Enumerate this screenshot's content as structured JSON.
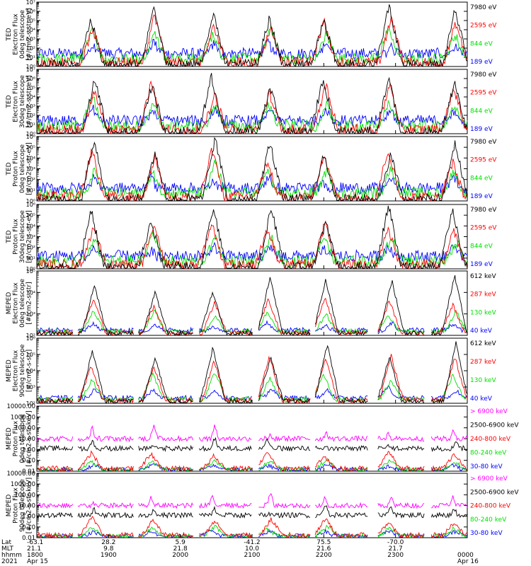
{
  "chart_data": [
    {
      "type": "line",
      "title": "",
      "ylabel": [
        "TED",
        "Electron Flux",
        "0deg telescope",
        "[#/cm2-s-str-eV]"
      ],
      "scale": "log",
      "ylim": [
        1,
        10000000
      ],
      "yticks": [
        "10⁰",
        "10¹",
        "10²",
        "10³",
        "10⁴",
        "10⁵",
        "10⁶",
        "10⁷"
      ],
      "series": [
        {
          "name": "7980 eV",
          "color": "#000000"
        },
        {
          "name": "2595 eV",
          "color": "#ff0000"
        },
        {
          "name": "844 eV",
          "color": "#00e000"
        },
        {
          "name": "189 eV",
          "color": "#0000ff"
        }
      ]
    },
    {
      "type": "line",
      "title": "",
      "ylabel": [
        "TED",
        "Electron Flux",
        "30deg telescope",
        "[#/cm2-s-str-eV]"
      ],
      "scale": "log",
      "ylim": [
        1,
        10000000
      ],
      "yticks": [
        "10⁰",
        "10¹",
        "10²",
        "10³",
        "10⁴",
        "10⁵",
        "10⁶",
        "10⁷"
      ],
      "series": [
        {
          "name": "7980 eV",
          "color": "#000000"
        },
        {
          "name": "2595 eV",
          "color": "#ff0000"
        },
        {
          "name": "844 eV",
          "color": "#00e000"
        },
        {
          "name": "189 eV",
          "color": "#0000ff"
        }
      ]
    },
    {
      "type": "line",
      "title": "",
      "ylabel": [
        "TED",
        "Proton Flux",
        "0deg telescope",
        "[#/cm2-s-str-eV]"
      ],
      "scale": "log",
      "ylim": [
        1,
        1000000
      ],
      "yticks": [
        "10⁰",
        "10¹",
        "10²",
        "10³",
        "10⁴",
        "10⁵",
        "10⁶"
      ],
      "series": [
        {
          "name": "7980 eV",
          "color": "#000000"
        },
        {
          "name": "2595 eV",
          "color": "#ff0000"
        },
        {
          "name": "844 eV",
          "color": "#00e000"
        },
        {
          "name": "189 eV",
          "color": "#0000ff"
        }
      ]
    },
    {
      "type": "line",
      "title": "",
      "ylabel": [
        "TED",
        "Proton Flux",
        "30deg telescope",
        "[#/cm2-s-str-eV]"
      ],
      "scale": "log",
      "ylim": [
        1,
        1000000
      ],
      "yticks": [
        "10⁰",
        "10¹",
        "10²",
        "10³",
        "10⁴",
        "10⁵",
        "10⁶"
      ],
      "series": [
        {
          "name": "7980 eV",
          "color": "#000000"
        },
        {
          "name": "2595 eV",
          "color": "#ff0000"
        },
        {
          "name": "844 eV",
          "color": "#00e000"
        },
        {
          "name": "189 eV",
          "color": "#0000ff"
        }
      ]
    },
    {
      "type": "line",
      "title": "",
      "ylabel": [
        "MEPED",
        "Electron Flux",
        "0deg telescope",
        "[#/cm2-s-str]"
      ],
      "scale": "log",
      "ylim": [
        100,
        100000
      ],
      "yticks": [
        "10²",
        "10³",
        "10⁴",
        "10⁵"
      ],
      "series": [
        {
          "name": "612 keV",
          "color": "#000000"
        },
        {
          "name": "287 keV",
          "color": "#ff0000"
        },
        {
          "name": "130 keV",
          "color": "#00e000"
        },
        {
          "name": "40 keV",
          "color": "#0000ff"
        }
      ]
    },
    {
      "type": "line",
      "title": "",
      "ylabel": [
        "MEPED",
        "Electron Flux",
        "90deg telescope",
        "[#/cm2-s-str]"
      ],
      "scale": "log",
      "ylim": [
        100,
        1000000
      ],
      "yticks": [
        "10²",
        "10³",
        "10⁴",
        "10⁵",
        "10⁶"
      ],
      "series": [
        {
          "name": "612 keV",
          "color": "#000000"
        },
        {
          "name": "287 keV",
          "color": "#ff0000"
        },
        {
          "name": "130 keV",
          "color": "#00e000"
        },
        {
          "name": "40 keV",
          "color": "#0000ff"
        }
      ]
    },
    {
      "type": "line",
      "title": "",
      "ylabel": [
        "MEPED",
        "Proton Flux",
        "0deg telescope",
        "[#/cm2-s-str-keV]"
      ],
      "scale": "log",
      "ylim": [
        0.01,
        10000
      ],
      "yticks": [
        "0.01",
        "0.10",
        "1.00",
        "10.00",
        "100.00",
        "1000.00",
        "10000.00"
      ],
      "series": [
        {
          "name": "> 6900 keV",
          "color": "#ff00ff"
        },
        {
          "name": "2500-6900 keV",
          "color": "#000000"
        },
        {
          "name": "240-800 keV",
          "color": "#ff0000"
        },
        {
          "name": "80-240 keV",
          "color": "#00e000"
        },
        {
          "name": "30-80 keV",
          "color": "#0000ff"
        }
      ]
    },
    {
      "type": "line",
      "title": "",
      "ylabel": [
        "MEPED",
        "Proton Flux",
        "90deg telescope",
        "[#/cm2-s-str-keV]"
      ],
      "scale": "log",
      "ylim": [
        0.01,
        10000
      ],
      "yticks": [
        "0.01",
        "0.10",
        "1.00",
        "10.00",
        "100.00",
        "1000.00",
        "10000.00"
      ],
      "series": [
        {
          "name": "> 6900 keV",
          "color": "#ff00ff"
        },
        {
          "name": "2500-6900 keV",
          "color": "#000000"
        },
        {
          "name": "240-800 keV",
          "color": "#ff0000"
        },
        {
          "name": "80-240 keV",
          "color": "#00e000"
        },
        {
          "name": "30-80 keV",
          "color": "#0000ff"
        }
      ]
    }
  ],
  "time_axis": {
    "row_labels": [
      "Lat",
      "MLT",
      "hhmm",
      "2021"
    ],
    "columns": [
      {
        "lat": "-63.1",
        "mlt": "21.1",
        "hhmm": "1800",
        "date": "Apr 15"
      },
      {
        "lat": "28.2",
        "mlt": "9.8",
        "hhmm": "1900",
        "date": ""
      },
      {
        "lat": "5.9",
        "mlt": "21.8",
        "hhmm": "2000",
        "date": ""
      },
      {
        "lat": "-41.2",
        "mlt": "10.0",
        "hhmm": "2100",
        "date": ""
      },
      {
        "lat": "75.5",
        "mlt": "21.6",
        "hhmm": "2200",
        "date": ""
      },
      {
        "lat": "-70.0",
        "mlt": "21.7",
        "hhmm": "2300",
        "date": ""
      },
      {
        "lat": "",
        "mlt": "",
        "hhmm": "0000",
        "date": "Apr 16"
      }
    ]
  }
}
